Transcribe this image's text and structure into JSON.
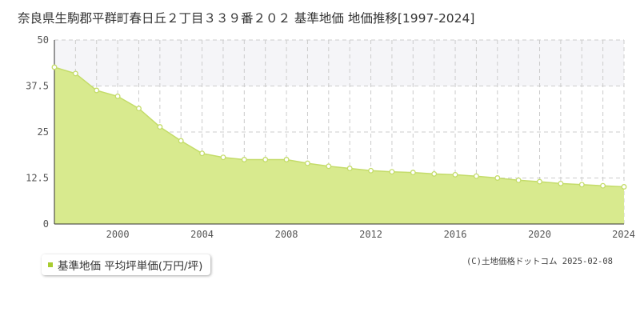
{
  "chart_data": {
    "type": "area",
    "title": "奈良県生駒郡平群町春日丘２丁目３３９番２０２ 基準地価 地価推移[1997-2024]",
    "x": [
      1997,
      1998,
      1999,
      2000,
      2001,
      2002,
      2003,
      2004,
      2005,
      2006,
      2007,
      2008,
      2009,
      2010,
      2011,
      2012,
      2013,
      2014,
      2015,
      2016,
      2017,
      2018,
      2019,
      2020,
      2021,
      2022,
      2023,
      2024
    ],
    "series": [
      {
        "name": "基準地価 平均坪単価(万円/坪)",
        "values": [
          42.6,
          40.9,
          36.3,
          34.7,
          31.4,
          26.4,
          22.6,
          19.2,
          18.1,
          17.5,
          17.5,
          17.5,
          16.5,
          15.7,
          15.1,
          14.5,
          14.2,
          14.0,
          13.6,
          13.4,
          13.0,
          12.5,
          11.9,
          11.5,
          11.0,
          10.7,
          10.4,
          10.1
        ]
      }
    ],
    "xticks": [
      "2000",
      "2004",
      "2008",
      "2012",
      "2016",
      "2020",
      "2024"
    ],
    "yticks": [
      "0",
      "12.5",
      "25",
      "37.5",
      "50"
    ],
    "ylim": [
      0,
      50
    ],
    "xlim": [
      1997,
      2024
    ],
    "grid": true,
    "legend_placement": "bottom-left",
    "colors": {
      "fill": "#d8ea8e",
      "line": "#c4dc6a",
      "marker_fill": "#ffffff",
      "legend": "#a8cc30",
      "grid": "#cccccc",
      "band": "#f5f5f8"
    }
  },
  "credit": "(C)土地価格ドットコム 2025-02-08"
}
